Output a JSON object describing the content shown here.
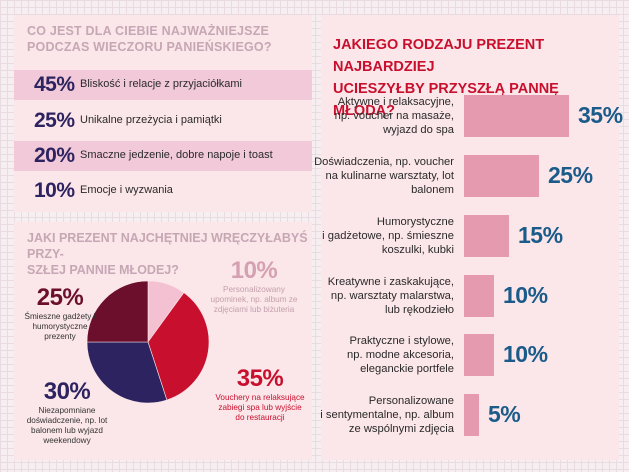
{
  "colors": {
    "accent_red": "#c8102e",
    "navy": "#2d2360",
    "maroon": "#6b0f2c",
    "pink_bar": "#e59aaf",
    "teal_value": "#1a5b8a",
    "pale_pink": "#f3c1d2",
    "panel_bg": "#fbe6e9",
    "muted_title": "#c6a7b4"
  },
  "chart_data": [
    {
      "type": "table",
      "title": "CO JEST DLA CIEBIE NAJWAŻNIEJSZE PODCZAS WIECZORU PANIEŃSKIEGO?",
      "rows": [
        {
          "value": "45%",
          "label": "Bliskość i relacje z przyjaciółkami"
        },
        {
          "value": "25%",
          "label": "Unikalne przeżycia i pamiątki"
        },
        {
          "value": "20%",
          "label": "Smaczne jedzenie, dobre napoje i toast"
        },
        {
          "value": "10%",
          "label": "Emocje i wyzwania"
        }
      ]
    },
    {
      "type": "pie",
      "title": "JAKI PREZENT NAJCHĘTNIEJ WRĘCZYŁABYŚ PRZYSZŁEJ PANNIE MŁODEJ?",
      "title_lines": [
        "JAKI PREZENT NAJCHĘTNIEJ WRĘCZYŁABYŚ PRZY-",
        "SZŁEJ PANNIE MŁODEJ?"
      ],
      "slices": [
        {
          "value": 10,
          "pct_label": "10%",
          "label": "Personalizowany upominek, np. album ze zdjęciami lub biżuteria",
          "color": "#f3c1d2",
          "text_color": "#d4a1b2"
        },
        {
          "value": 35,
          "pct_label": "35%",
          "label": "Vouchery na relaksujące zabiegi spa lub wyjście do restauracji",
          "color": "#c8102e",
          "text_color": "#c8102e"
        },
        {
          "value": 30,
          "pct_label": "30%",
          "label": "Niezapomniane doświadczenie, np. lot balonem lub wyjazd weekendowy",
          "color": "#2d2360",
          "text_color": "#2d2360"
        },
        {
          "value": 25,
          "pct_label": "25%",
          "label": "Śmieszne gadżety i humorystyczne prezenty",
          "color": "#6b0f2c",
          "text_color": "#6b0f2c"
        }
      ]
    },
    {
      "type": "bar",
      "orientation": "horizontal",
      "title": "JAKIEGO RODZAJU PREZENT NAJBARDZIEJ UCIESZYŁBY PRZYSZŁĄ PANNĘ MŁODĄ?",
      "title_lines": [
        "JAKIEGO RODZAJU PREZENT NAJBARDZIEJ",
        "UCIESZYŁBY PRZYSZŁĄ PANNĘ MŁODĄ?"
      ],
      "categories": [
        [
          "Aktywne i relaksacyjne,",
          "np. voucher na masaże,",
          "wyjazd do spa"
        ],
        [
          "Doświadczenia, np. voucher",
          "na kulinarne warsztaty, lot",
          "balonem"
        ],
        [
          "Humorystyczne",
          "i gadżetowe, np. śmieszne",
          "koszulki, kubki"
        ],
        [
          "Kreatywne i zaskakujące,",
          "np. warsztaty malarstwa,",
          "lub rękodzieło"
        ],
        [
          "Praktyczne i stylowe,",
          "np. modne akcesoria,",
          "eleganckie portfele"
        ],
        [
          "Personalizowane",
          "i sentymentalne, np. album",
          "ze wspólnymi zdjęcia"
        ]
      ],
      "values": [
        35,
        25,
        15,
        10,
        10,
        5
      ],
      "value_labels": [
        "35%",
        "25%",
        "15%",
        "10%",
        "10%",
        "5%"
      ],
      "xlim": [
        0,
        35
      ]
    }
  ]
}
